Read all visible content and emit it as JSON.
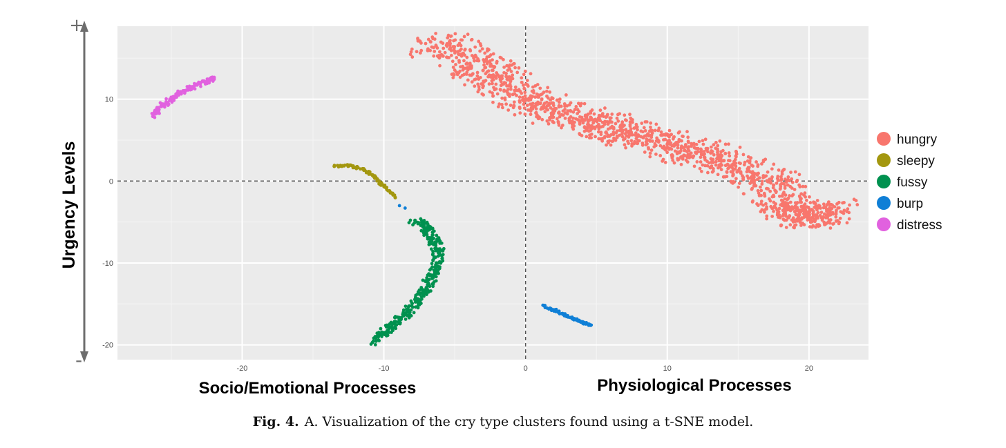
{
  "colors": {
    "panel": "#ebebeb",
    "grid_major": "#ffffff",
    "grid_minor": "#f5f5f5",
    "hungry": "#f8766d",
    "sleepy": "#a3970f",
    "fussy": "#00914f",
    "burp": "#0f7fd6",
    "distress": "#e161df",
    "axis_arrow": "#6d6d6d",
    "ref_line": "#555555"
  },
  "chart_data": {
    "type": "scatter",
    "title": "",
    "xlabel_left": "Socio/Emotional Processes",
    "xlabel_right": "Physiological Processes",
    "ylabel": "Urgency Levels",
    "y_arrow_top": "+",
    "y_arrow_bottom": "-",
    "xlim": [
      -28.8,
      24.2
    ],
    "ylim": [
      -21.8,
      18.9
    ],
    "xticks": [
      -20,
      -10,
      0,
      10,
      20
    ],
    "yticks": [
      -20,
      -10,
      0,
      10
    ],
    "xtick_labels": [
      "-20",
      "-10",
      "0",
      "10",
      "20"
    ],
    "ytick_labels": [
      "-20",
      "-10",
      "0",
      "10"
    ],
    "grid": true,
    "reference_lines": {
      "x": 0,
      "y": 0,
      "style": "dashed"
    },
    "legend_position": "right",
    "legend": [
      "hungry",
      "sleepy",
      "fussy",
      "burp",
      "distress"
    ],
    "series": [
      {
        "name": "hungry",
        "color_key": "hungry",
        "shape": "elongated band",
        "x": [
          -6.7,
          -4.5,
          -3.0,
          -1.5,
          0.0,
          2.0,
          4.0,
          6.0,
          8.0,
          10.0,
          12.0,
          14.0,
          16.0,
          17.5,
          18.5,
          19.5,
          20.5,
          21.5
        ],
        "y": [
          17.0,
          15.5,
          13.5,
          12.0,
          10.0,
          8.5,
          7.5,
          6.5,
          5.5,
          4.5,
          3.5,
          2.5,
          1.0,
          -0.5,
          -3.5,
          -4.5,
          -4.2,
          -3.5
        ]
      },
      {
        "name": "sleepy",
        "color_key": "sleepy",
        "shape": "thin curve",
        "x": [
          -13.5,
          -12.5,
          -11.5,
          -10.8,
          -10.2,
          -9.6,
          -9.2
        ],
        "y": [
          1.8,
          1.9,
          1.5,
          0.7,
          -0.3,
          -1.2,
          -2.0
        ]
      },
      {
        "name": "fussy",
        "color_key": "fussy",
        "shape": "crescent",
        "x": [
          -7.8,
          -7.0,
          -6.5,
          -6.2,
          -6.3,
          -6.6,
          -7.0,
          -7.5,
          -8.3,
          -9.2,
          -10.0,
          -10.8
        ],
        "y": [
          -4.8,
          -5.8,
          -7.0,
          -8.5,
          -10.0,
          -11.5,
          -13.0,
          -14.5,
          -16.0,
          -17.3,
          -18.5,
          -19.7
        ]
      },
      {
        "name": "burp",
        "color_key": "burp",
        "shape": "small loop",
        "x": [
          1.3,
          1.8,
          2.3,
          2.8,
          3.3,
          3.8,
          4.3,
          4.6,
          -8.5,
          -8.9
        ],
        "y": [
          -15.2,
          -15.6,
          -16.0,
          -16.4,
          -16.8,
          -17.1,
          -17.4,
          -17.6,
          -3.3,
          -3.0
        ]
      },
      {
        "name": "distress",
        "color_key": "distress",
        "shape": "thin loop",
        "x": [
          -26.3,
          -25.7,
          -25.0,
          -24.3,
          -23.6,
          -23.0,
          -22.3,
          -22.1
        ],
        "y": [
          7.9,
          9.1,
          10.0,
          10.8,
          11.4,
          11.9,
          12.3,
          12.5
        ]
      }
    ]
  },
  "caption": {
    "label": "Fig. 4.",
    "text": "A. Visualization of the cry type clusters found using a t-SNE model."
  }
}
